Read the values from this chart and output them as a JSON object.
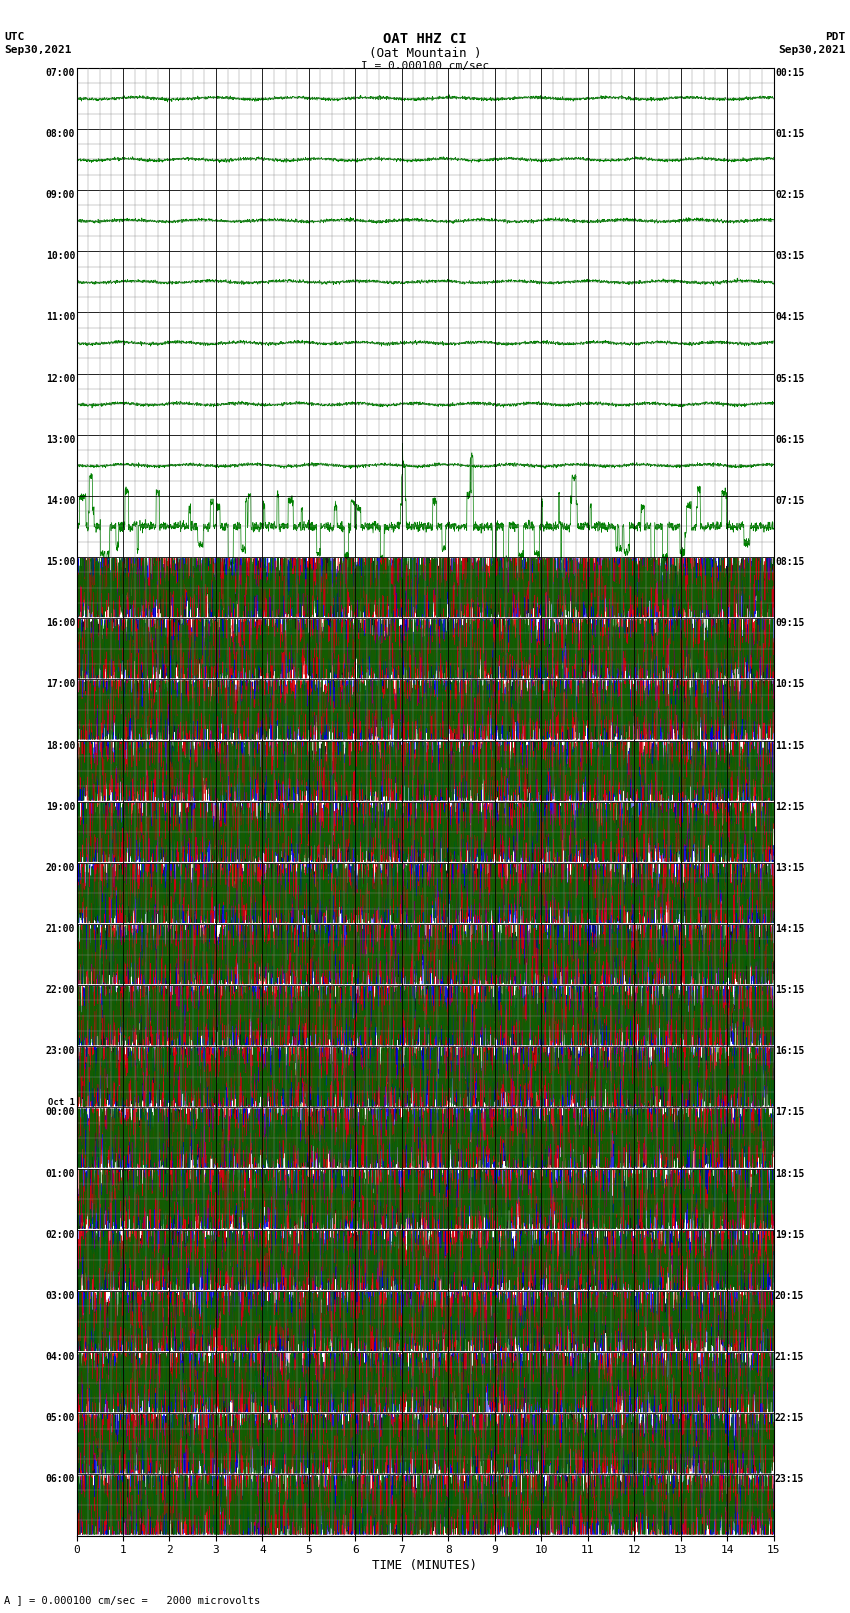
{
  "title_line1": "OAT HHZ CI",
  "title_line2": "(Oat Mountain )",
  "title_scale": "I = 0.000100 cm/sec",
  "utc_label": "UTC",
  "utc_date": "Sep30,2021",
  "pdt_label": "PDT",
  "pdt_date": "Sep30,2021",
  "bottom_note": "A ] = 0.000100 cm/sec =   2000 microvolts",
  "xlabel": "TIME (MINUTES)",
  "left_times": [
    "07:00",
    "08:00",
    "09:00",
    "10:00",
    "11:00",
    "12:00",
    "13:00",
    "14:00",
    "15:00",
    "16:00",
    "17:00",
    "18:00",
    "19:00",
    "20:00",
    "21:00",
    "22:00",
    "23:00",
    "Oct 1\n00:00",
    "01:00",
    "02:00",
    "03:00",
    "04:00",
    "05:00",
    "06:00"
  ],
  "right_times": [
    "00:15",
    "01:15",
    "02:15",
    "03:15",
    "04:15",
    "05:15",
    "06:15",
    "07:15",
    "08:15",
    "09:15",
    "10:15",
    "11:15",
    "12:15",
    "13:15",
    "14:15",
    "15:15",
    "16:15",
    "17:15",
    "18:15",
    "19:15",
    "20:15",
    "21:15",
    "22:15",
    "23:15"
  ],
  "num_rows": 24,
  "num_quiet_rows": 8,
  "x_min": 0,
  "x_max": 15,
  "x_ticks": [
    0,
    1,
    2,
    3,
    4,
    5,
    6,
    7,
    8,
    9,
    10,
    11,
    12,
    13,
    14,
    15
  ],
  "bg_color": "#ffffff",
  "grid_color": "#000000",
  "quiet_trace_color": "#008000",
  "active_colors": [
    "#000000",
    "#0000dd",
    "#dd0000",
    "#006600"
  ],
  "figure_width": 8.5,
  "figure_height": 16.13
}
